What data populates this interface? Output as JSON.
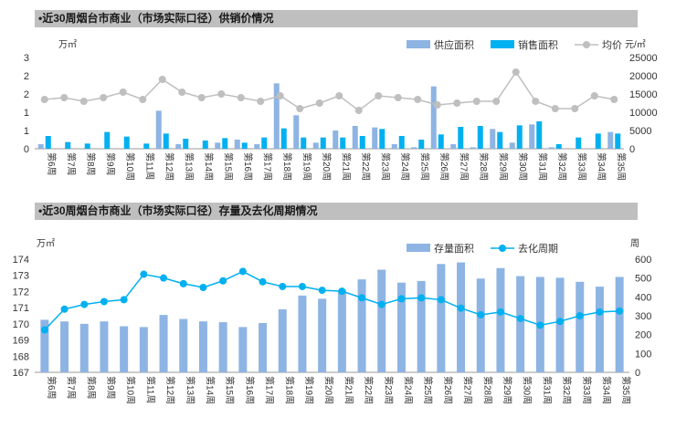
{
  "chart_data": [
    {
      "type": "bar",
      "title": "•近30周烟台市商业（市场实际口径）供销价情况",
      "ylabel_left": "万㎡",
      "ylabel_right": "元/㎡",
      "ylim_left": [
        0,
        3
      ],
      "yticks_left": [
        "3",
        "2",
        "2",
        "1",
        "1",
        "0"
      ],
      "ylim_right": [
        0,
        25000
      ],
      "yticks_right": [
        "25000",
        "20000",
        "15000",
        "10000",
        "5000",
        "0"
      ],
      "categories": [
        "第6周",
        "第7周",
        "第8周",
        "第9周",
        "第10周",
        "第11周",
        "第12周",
        "第13周",
        "第14周",
        "第15周",
        "第16周",
        "第17周",
        "第18周",
        "第19周",
        "第20周",
        "第21周",
        "第22周",
        "第23周",
        "第24周",
        "第25周",
        "第26周",
        "第27周",
        "第28周",
        "第29周",
        "第30周",
        "第31周",
        "第32周",
        "第33周",
        "第34周",
        "第35周"
      ],
      "series": [
        {
          "name": "供应面积",
          "kind": "bar",
          "axis": "left",
          "color": "#8EB4E3",
          "values": [
            0.15,
            0,
            0,
            0,
            0,
            0,
            1.25,
            0.15,
            0,
            0.2,
            0.3,
            0.15,
            2.15,
            1.1,
            0.2,
            0.6,
            0.75,
            0.7,
            0.15,
            0.05,
            2.05,
            0.15,
            0.05,
            0.65,
            0.2,
            0.8,
            0.05,
            0,
            0,
            0.55
          ]
        },
        {
          "name": "销售面积",
          "kind": "bar",
          "axis": "left",
          "color": "#00B0F0",
          "values": [
            0.42,
            0.22,
            0.17,
            0.55,
            0.4,
            0.17,
            0.5,
            0.33,
            0.27,
            0.35,
            0.2,
            0.37,
            0.67,
            0.37,
            0.37,
            0.37,
            0.42,
            0.65,
            0.42,
            0.3,
            0.47,
            0.72,
            0.75,
            0.55,
            0.77,
            0.9,
            0.15,
            0.37,
            0.5,
            0.5
          ]
        },
        {
          "name": "均价",
          "kind": "line",
          "axis": "right",
          "color": "#BFBFBF",
          "values": [
            13500,
            14000,
            13000,
            14000,
            15500,
            13500,
            19000,
            15500,
            14000,
            15000,
            14000,
            13000,
            14500,
            11000,
            12500,
            14500,
            10500,
            14500,
            14000,
            13500,
            12000,
            12500,
            13000,
            13000,
            21000,
            13000,
            11000,
            11000,
            14500,
            13500
          ]
        }
      ]
    },
    {
      "type": "bar",
      "title": "•近30周烟台市商业（市场实际口径）存量及去化周期情况",
      "ylabel_left": "万㎡",
      "ylabel_right": "周",
      "ylim_left": [
        167,
        174
      ],
      "yticks_left": [
        "174",
        "173",
        "172",
        "171",
        "170",
        "169",
        "168",
        "167"
      ],
      "ylim_right": [
        0,
        600
      ],
      "yticks_right": [
        "600",
        "500",
        "400",
        "300",
        "200",
        "100",
        "0"
      ],
      "categories": [
        "第6周",
        "第7周",
        "第8周",
        "第9周",
        "第10周",
        "第11周",
        "第12周",
        "第13周",
        "第14周",
        "第15周",
        "第16周",
        "第17周",
        "第18周",
        "第19周",
        "第20周",
        "第21周",
        "第22周",
        "第23周",
        "第24周",
        "第25周",
        "第26周",
        "第27周",
        "第28周",
        "第29周",
        "第30周",
        "第31周",
        "第32周",
        "第33周",
        "第34周",
        "第35周"
      ],
      "series": [
        {
          "name": "存量面积",
          "kind": "bar",
          "axis": "left",
          "color": "#8EB4E3",
          "values": [
            170.25,
            170.15,
            170.0,
            170.15,
            169.85,
            169.8,
            170.55,
            170.3,
            170.15,
            170.1,
            169.8,
            170.05,
            170.9,
            171.75,
            171.55,
            172.1,
            172.75,
            173.35,
            172.55,
            172.65,
            173.7,
            173.8,
            172.8,
            173.45,
            172.95,
            172.9,
            172.85,
            172.6,
            172.3,
            172.9
          ]
        },
        {
          "name": "去化周期",
          "kind": "line",
          "axis": "right",
          "color": "#00B0F0",
          "values": [
            225,
            335,
            360,
            375,
            385,
            520,
            500,
            470,
            450,
            485,
            535,
            480,
            455,
            455,
            435,
            430,
            395,
            360,
            390,
            395,
            385,
            340,
            305,
            320,
            285,
            250,
            270,
            300,
            320,
            325
          ]
        }
      ]
    }
  ]
}
